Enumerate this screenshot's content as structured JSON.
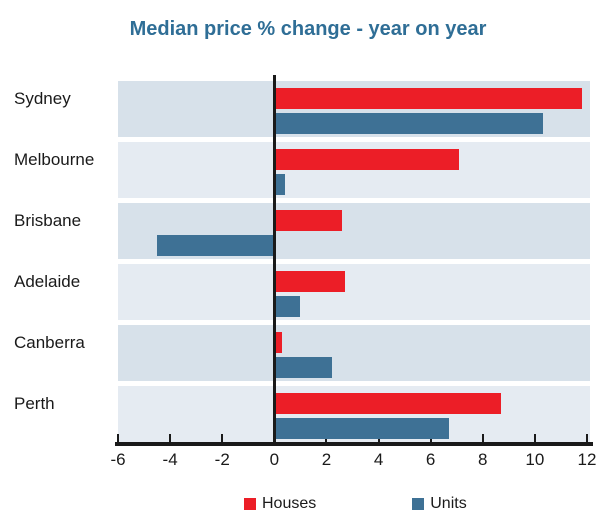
{
  "title": "Median price % change - year on year",
  "legend": {
    "items": [
      {
        "label": "Houses",
        "color": "#ec1e27",
        "icon": "houses-swatch"
      },
      {
        "label": "Units",
        "color": "#3e7195",
        "icon": "units-swatch"
      }
    ]
  },
  "colors": {
    "houses": "#ec1e27",
    "units": "#3e7195",
    "band_dark": "#d7e1ea",
    "band_light": "#e5ebf2",
    "axis": "#1a1a1a",
    "title": "#2f6e96"
  },
  "chart_data": {
    "type": "bar",
    "orientation": "horizontal",
    "title": "Median price % change - year on year",
    "categories": [
      "Sydney",
      "Melbourne",
      "Brisbane",
      "Adelaide",
      "Canberra",
      "Perth"
    ],
    "series": [
      {
        "name": "Houses",
        "color": "#ec1e27",
        "values": [
          11.8,
          7.1,
          2.6,
          2.7,
          0.3,
          8.7
        ]
      },
      {
        "name": "Units",
        "color": "#3e7195",
        "values": [
          10.3,
          0.4,
          -4.5,
          1.0,
          2.2,
          6.7
        ]
      }
    ],
    "xlabel": "",
    "ylabel": "",
    "xlim": [
      -6,
      12
    ],
    "x_ticks": [
      -6,
      -4,
      -2,
      0,
      2,
      4,
      6,
      8,
      10,
      12
    ],
    "grid": false,
    "legend_position": "bottom",
    "row_band_colors": [
      "#d7e1ea",
      "#e5ebf2"
    ]
  }
}
